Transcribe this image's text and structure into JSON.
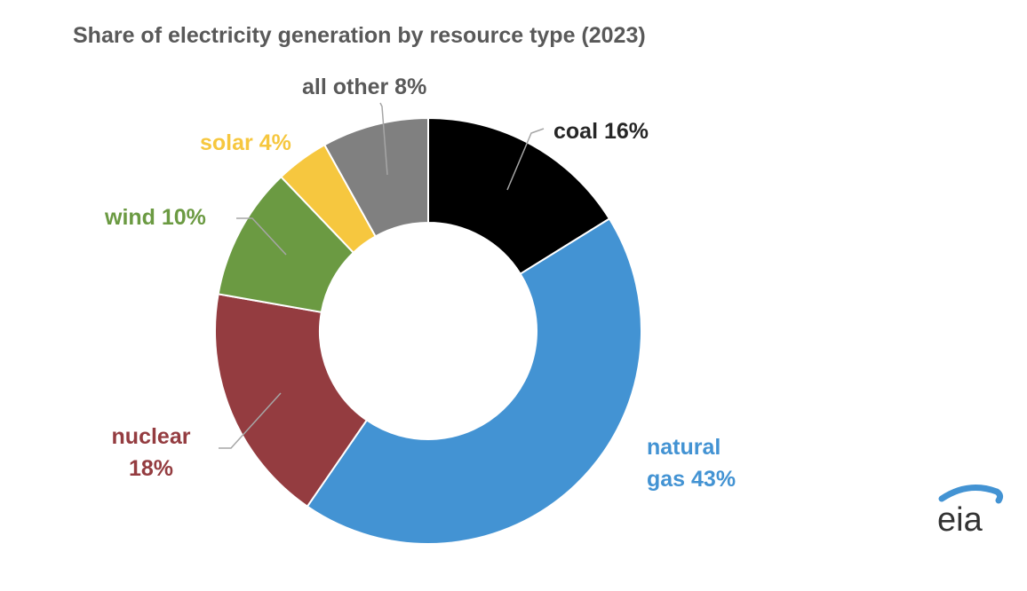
{
  "chart_data": {
    "type": "pie",
    "donut": true,
    "title": "Share of electricity generation by resource type (2023)",
    "slices": [
      {
        "name": "coal",
        "value": 16,
        "color": "#000000",
        "label_color": "#262626",
        "label_lines": [
          "coal 16%"
        ]
      },
      {
        "name": "natural gas",
        "value": 43,
        "color": "#4393d3",
        "label_color": "#4393d3",
        "label_lines": [
          "natural",
          "gas 43%"
        ]
      },
      {
        "name": "nuclear",
        "value": 18,
        "color": "#943c40",
        "label_color": "#943c40",
        "label_lines": [
          "nuclear",
          "18%"
        ]
      },
      {
        "name": "wind",
        "value": 10,
        "color": "#6b9a42",
        "label_color": "#6b9a42",
        "label_lines": [
          "wind 10%"
        ]
      },
      {
        "name": "solar",
        "value": 4,
        "color": "#f6c73f",
        "label_color": "#f6c73f",
        "label_lines": [
          "solar 4%"
        ]
      },
      {
        "name": "all other",
        "value": 8,
        "color": "#808080",
        "label_color": "#595959",
        "label_lines": [
          "all other 8%"
        ]
      }
    ],
    "legend": "none"
  },
  "logo": {
    "text": "eia",
    "arc_color": "#4393d3",
    "text_color": "#333333",
    "icon": "eia-logo-icon"
  }
}
